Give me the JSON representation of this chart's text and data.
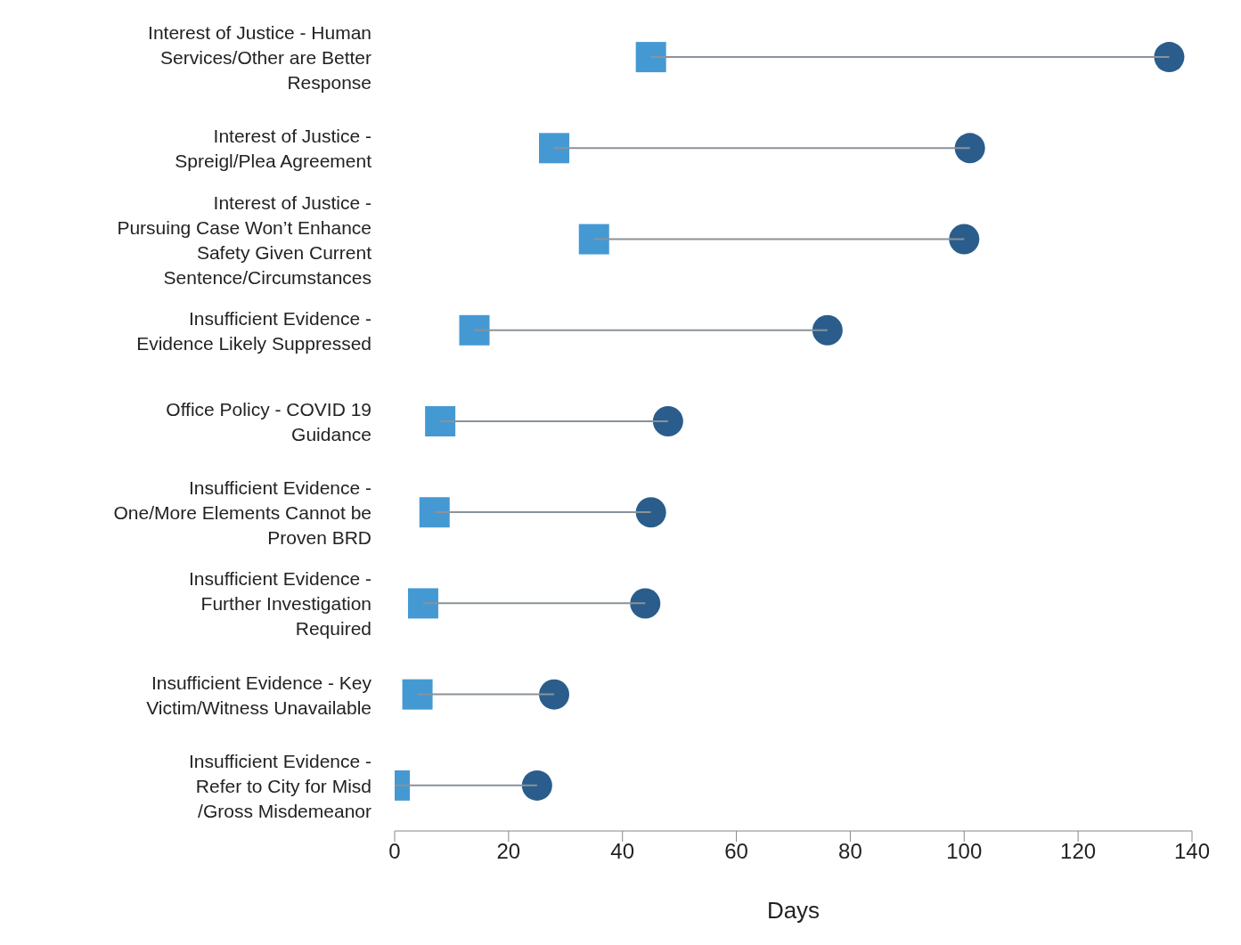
{
  "chart_data": {
    "type": "bar",
    "orientation": "horizontal",
    "xlabel": "Days",
    "categories": [
      "Interest of Justice - Human Services/Other are Better Response",
      "Interest of Justice - Spreigl/Plea Agreement",
      "Interest of Justice - Pursuing Case Won’t Enhance Safety Given Current Sentence/Circumstances",
      "Insufficient Evidence - Evidence Likely Suppressed",
      "Office Policy - COVID 19 Guidance",
      "Insufficient Evidence - One/More Elements Cannot be Proven BRD",
      "Insufficient Evidence - Further Investigation Required",
      "Insufficient Evidence - Key Victim/Witness Unavailable",
      "Insufficient Evidence - Refer to City for Misd /Gross Misdemeanor"
    ],
    "series": [
      {
        "type": "bar",
        "color": "#8a9299",
        "base": [
          45,
          28,
          35,
          14,
          8,
          7,
          5,
          4,
          0
        ],
        "values": [
          91,
          73,
          65,
          62,
          40,
          38,
          39,
          24,
          25
        ]
      },
      {
        "type": "scatter",
        "marker": "square",
        "color": "#4599d3",
        "values": [
          45,
          28,
          35,
          14,
          8,
          7,
          5,
          4,
          0
        ]
      },
      {
        "type": "scatter",
        "marker": "circle",
        "color": "#2a5d8c",
        "values": [
          136,
          101,
          100,
          76,
          48,
          45,
          44,
          28,
          25
        ]
      }
    ],
    "xlim": [
      0,
      140
    ],
    "xticks": [
      0,
      20,
      40,
      60,
      80,
      100,
      120,
      140
    ],
    "grid": false,
    "legend": false
  }
}
